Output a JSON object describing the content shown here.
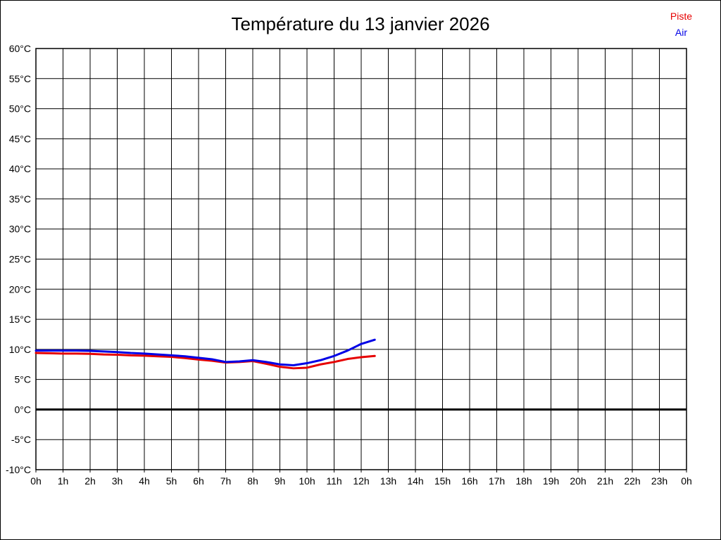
{
  "title": "Température du 13 janvier 2026",
  "legend": {
    "piste_label": "Piste",
    "air_label": "Air"
  },
  "colors": {
    "piste": "#e60000",
    "air": "#0000e6",
    "grid": "#000000",
    "zero_line": "#000000",
    "text": "#000000"
  },
  "chart_data": {
    "type": "line",
    "title": "Température du 13 janvier 2026",
    "xlabel": "",
    "ylabel": "",
    "xlim": [
      0,
      24
    ],
    "ylim": [
      -10,
      60
    ],
    "grid": true,
    "zero_line_bold": true,
    "legend_position": "top-right",
    "x_tick_labels": [
      "0h",
      "1h",
      "2h",
      "3h",
      "4h",
      "5h",
      "6h",
      "7h",
      "8h",
      "9h",
      "10h",
      "11h",
      "12h",
      "13h",
      "14h",
      "15h",
      "16h",
      "17h",
      "18h",
      "19h",
      "20h",
      "21h",
      "22h",
      "23h",
      "0h"
    ],
    "y_tick_labels": [
      "60°C",
      "55°C",
      "50°C",
      "45°C",
      "40°C",
      "35°C",
      "30°C",
      "25°C",
      "20°C",
      "15°C",
      "10°C",
      "5°C",
      "0°C",
      "-5°C",
      "-10°C"
    ],
    "y_tick_values": [
      60,
      55,
      50,
      45,
      40,
      35,
      30,
      25,
      20,
      15,
      10,
      5,
      0,
      -5,
      -10
    ],
    "x": [
      0,
      0.5,
      1,
      1.5,
      2,
      2.5,
      3,
      3.5,
      4,
      4.5,
      5,
      5.5,
      6,
      6.5,
      7,
      7.5,
      8,
      8.5,
      9,
      9.5,
      10,
      10.5,
      11,
      11.5,
      12,
      12.5
    ],
    "series": [
      {
        "name": "Piste",
        "color": "#e60000",
        "values": [
          9.4,
          9.35,
          9.3,
          9.3,
          9.25,
          9.15,
          9.1,
          9.0,
          8.95,
          8.85,
          8.75,
          8.55,
          8.3,
          8.1,
          7.8,
          7.9,
          8.05,
          7.6,
          7.1,
          6.85,
          6.95,
          7.5,
          7.9,
          8.4,
          8.7,
          8.9
        ]
      },
      {
        "name": "Air",
        "color": "#0000e6",
        "values": [
          9.8,
          9.8,
          9.8,
          9.8,
          9.75,
          9.65,
          9.55,
          9.4,
          9.3,
          9.15,
          9.0,
          8.85,
          8.6,
          8.35,
          7.9,
          8.0,
          8.2,
          7.9,
          7.5,
          7.35,
          7.7,
          8.2,
          8.9,
          9.8,
          10.9,
          11.6
        ]
      }
    ]
  }
}
